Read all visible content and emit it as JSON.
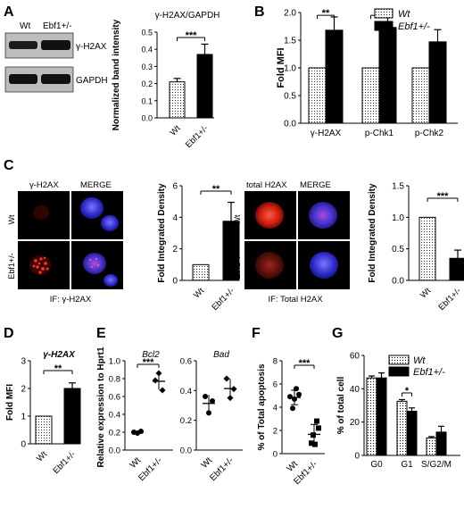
{
  "panel_letters": {
    "A": "A",
    "B": "B",
    "C": "C",
    "D": "D",
    "E": "E",
    "F": "F",
    "G": "G"
  },
  "blot": {
    "lane1": "Wt",
    "lane2": "Ebf1+/-",
    "band1": "γ-H2AX",
    "band2": "GAPDH"
  },
  "micro": {
    "left_col1": "γ-H2AX",
    "left_col2": "MERGE",
    "right_col1": "total H2AX",
    "right_col2": "MERGE",
    "row1": "Wt",
    "row2": "Ebf1+/-",
    "left_caption": "IF: γ-H2AX",
    "right_caption": "IF: Total H2AX"
  },
  "colors": {
    "black_bar": "#000000",
    "dotted_bar": "#ffffff",
    "red_signal": "#e0201a",
    "blue_nucleus": "#3a35e0"
  },
  "chart_data": [
    {
      "id": "A",
      "type": "bar",
      "title": "γ-H2AX/GAPDH",
      "ylabel": "Normalized band intensity",
      "categories": [
        "Wt",
        "Ebf1+/-"
      ],
      "values": [
        0.21,
        0.37
      ],
      "errors": [
        0.02,
        0.06
      ],
      "ylim": [
        0.0,
        0.5
      ],
      "yticks": [
        "0.0",
        "0.1",
        "0.2",
        "0.3",
        "0.4",
        "0.5"
      ],
      "significance": "***"
    },
    {
      "id": "B",
      "type": "bar",
      "ylabel": "Fold MFI",
      "categories": [
        "γ-H2AX",
        "p-Chk1",
        "p-Chk2"
      ],
      "series": [
        {
          "name": "Wt",
          "values": [
            1.0,
            1.0,
            1.0
          ],
          "errors": [
            0,
            0,
            0
          ]
        },
        {
          "name": "Ebf1+/-",
          "values": [
            1.68,
            1.73,
            1.47
          ],
          "errors": [
            0.24,
            0.33,
            0.22
          ]
        }
      ],
      "ylim": [
        0.0,
        2.0
      ],
      "yticks": [
        "0.0",
        "0.5",
        "1.0",
        "1.5",
        "2.0"
      ],
      "significance": [
        "**",
        "*",
        ""
      ],
      "legend": "top-right"
    },
    {
      "id": "C-left",
      "type": "bar",
      "ylabel": "Fold Integrated Density",
      "categories": [
        "Wt",
        "Ebf1+/-"
      ],
      "values": [
        1.0,
        3.75
      ],
      "errors": [
        0,
        1.2
      ],
      "ylim": [
        0,
        6
      ],
      "yticks": [
        "0",
        "2",
        "4",
        "6"
      ],
      "significance": "**"
    },
    {
      "id": "C-right",
      "type": "bar",
      "ylabel": "Fold Integrated Density",
      "categories": [
        "Wt",
        "Ebf1+/-"
      ],
      "values": [
        1.0,
        0.35
      ],
      "errors": [
        0,
        0.13
      ],
      "ylim": [
        0.0,
        1.5
      ],
      "yticks": [
        "0.0",
        "0.5",
        "1.0",
        "1.5"
      ],
      "significance": "***"
    },
    {
      "id": "D",
      "type": "bar",
      "title": "γ-H2AX",
      "ylabel": "Fold MFI",
      "categories": [
        "Wt",
        "Ebf1+/-"
      ],
      "values": [
        1.0,
        2.0
      ],
      "errors": [
        0,
        0.2
      ],
      "ylim": [
        0,
        3
      ],
      "yticks": [
        "0",
        "1",
        "2",
        "3"
      ],
      "significance": "**"
    },
    {
      "id": "E",
      "type": "scatter",
      "ylabel": "Relative expression to Hprt1",
      "panels": [
        {
          "title": "Bcl2",
          "categories": [
            "Wt",
            "Ebf1+/-"
          ],
          "points": [
            [
              0.2,
              0.19,
              0.21
            ],
            [
              0.78,
              0.86,
              0.67
            ]
          ],
          "ylim": [
            0.0,
            1.0
          ],
          "yticks": [
            "0.0",
            "0.2",
            "0.4",
            "0.6",
            "0.8",
            "1.0"
          ],
          "significance": "***"
        },
        {
          "title": "Bad",
          "categories": [
            "Wt",
            "Ebf1+/-"
          ],
          "points": [
            [
              0.36,
              0.25,
              0.33
            ],
            [
              0.48,
              0.35,
              0.41
            ]
          ],
          "ylim": [
            0.0,
            0.6
          ],
          "yticks": [
            "0.0",
            "0.2",
            "0.4",
            "0.6"
          ],
          "significance": ""
        }
      ]
    },
    {
      "id": "F",
      "type": "scatter",
      "ylabel": "% of Total apoptosis",
      "categories": [
        "Wt",
        "Ebf1+/-"
      ],
      "points": [
        [
          4.9,
          5.6,
          3.9,
          5.1,
          4.7
        ],
        [
          2.8,
          0.9,
          2.2,
          1.6,
          0.8
        ]
      ],
      "ylim": [
        0,
        8
      ],
      "yticks": [
        "0",
        "2",
        "4",
        "6",
        "8"
      ],
      "significance": "***"
    },
    {
      "id": "G",
      "type": "bar",
      "ylabel": "% of total cell",
      "categories": [
        "G0",
        "G1",
        "S/G2/M"
      ],
      "series": [
        {
          "name": "Wt",
          "values": [
            46.5,
            32.5,
            10.5
          ],
          "errors": [
            1.2,
            1.0,
            0.8
          ]
        },
        {
          "name": "Ebf1+/-",
          "values": [
            46.5,
            26.5,
            14.0
          ],
          "errors": [
            3.0,
            2.0,
            3.5
          ]
        }
      ],
      "ylim": [
        0,
        60
      ],
      "yticks": [
        "0",
        "20",
        "40",
        "60"
      ],
      "significance": [
        "",
        "*",
        ""
      ],
      "legend": "top-right"
    }
  ]
}
